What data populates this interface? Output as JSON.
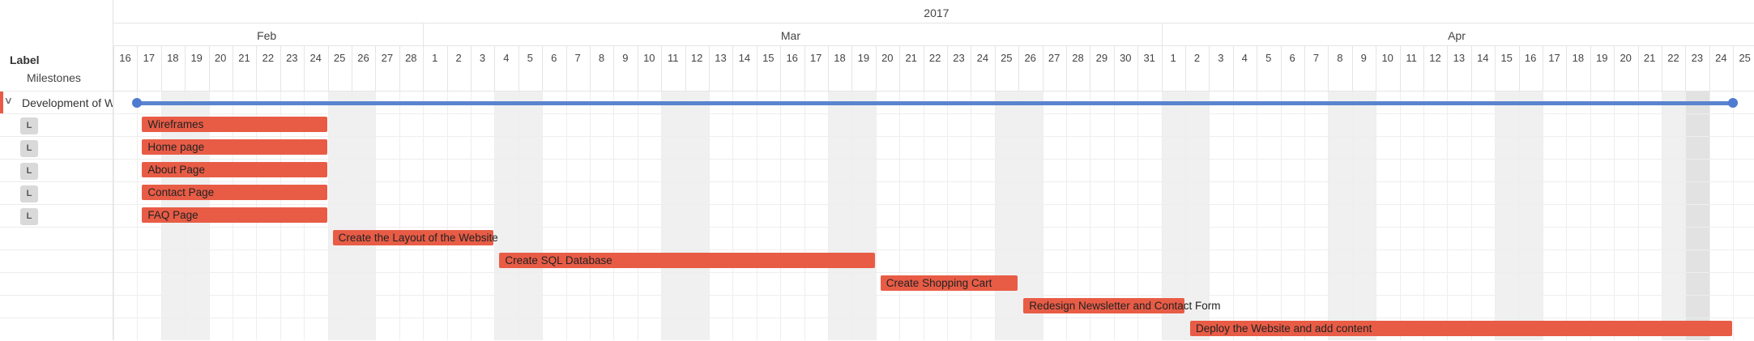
{
  "colors": {
    "task_bar": "#e85c46",
    "milestone": "#5b84cf",
    "weekend_shade": "#f0f0f0"
  },
  "sidebar": {
    "header_label": "Label",
    "milestones_label": "Milestones",
    "project_name": "Development of Website",
    "badge_text": "L"
  },
  "timeline": {
    "year": "2017",
    "months": [
      "Feb",
      "Mar",
      "Apr"
    ],
    "days": [
      "16",
      "17",
      "18",
      "19",
      "20",
      "21",
      "22",
      "23",
      "24",
      "25",
      "26",
      "27",
      "28",
      "1",
      "2",
      "3",
      "4",
      "5",
      "6",
      "7",
      "8",
      "9",
      "10",
      "11",
      "12",
      "13",
      "14",
      "15",
      "16",
      "17",
      "18",
      "19",
      "20",
      "21",
      "22",
      "23",
      "24",
      "25",
      "26",
      "27",
      "28",
      "29",
      "30",
      "31",
      "1",
      "2",
      "3",
      "4",
      "5",
      "6",
      "7",
      "8",
      "9",
      "10",
      "11",
      "12",
      "13",
      "14",
      "15",
      "16",
      "17",
      "18",
      "19",
      "20",
      "21",
      "22",
      "23",
      "24",
      "25"
    ],
    "tasks": [
      {
        "name": "Wireframes",
        "start": "2017-02-17",
        "end": "2017-02-24"
      },
      {
        "name": "Home page",
        "start": "2017-02-17",
        "end": "2017-02-24"
      },
      {
        "name": "About Page",
        "start": "2017-02-17",
        "end": "2017-02-24"
      },
      {
        "name": "Contact Page",
        "start": "2017-02-17",
        "end": "2017-02-24"
      },
      {
        "name": "FAQ Page",
        "start": "2017-02-17",
        "end": "2017-02-24"
      },
      {
        "name": "Create the Layout of the Website",
        "start": "2017-02-25",
        "end": "2017-03-03"
      },
      {
        "name": "Create SQL Database",
        "start": "2017-03-04",
        "end": "2017-03-19"
      },
      {
        "name": "Create Shopping Cart",
        "start": "2017-03-20",
        "end": "2017-03-25"
      },
      {
        "name": "Redesign Newsletter and Contact Form",
        "start": "2017-03-26",
        "end": "2017-04-01"
      },
      {
        "name": "Deploy the Website and add content",
        "start": "2017-04-02",
        "end": "2017-04-24"
      }
    ],
    "project_span": {
      "start": "2017-02-17",
      "end": "2017-04-24"
    }
  }
}
